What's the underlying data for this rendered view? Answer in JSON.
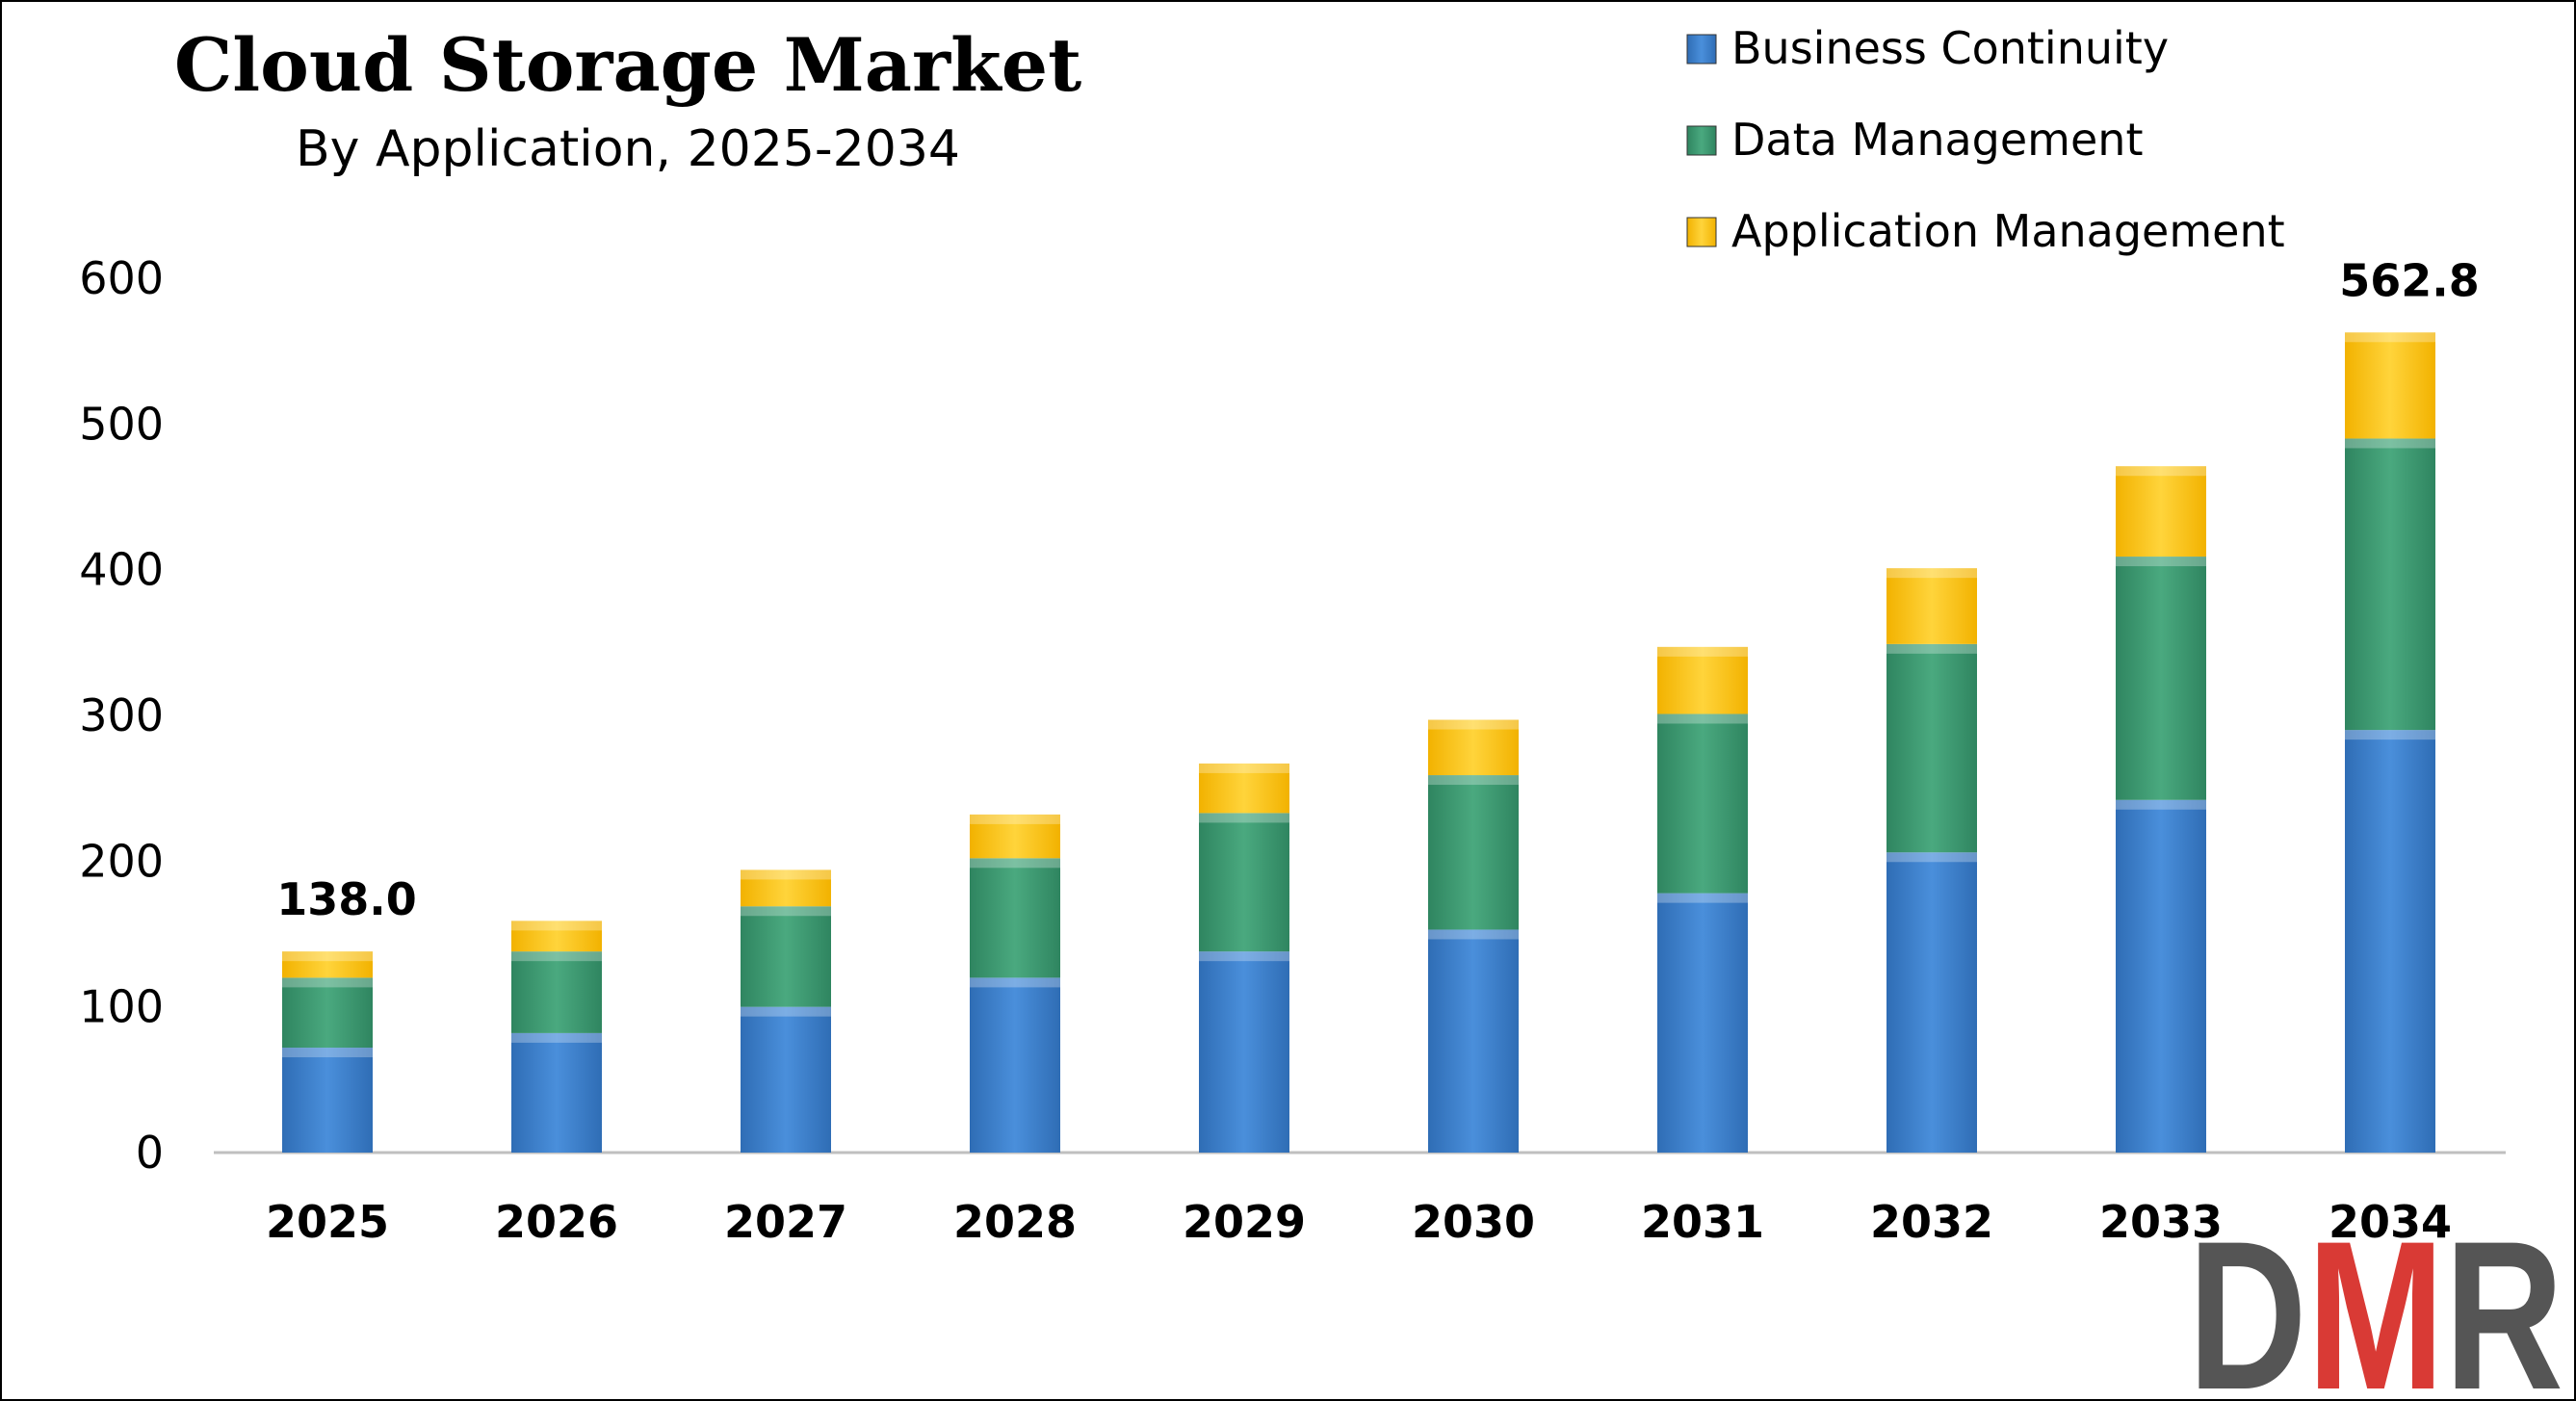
{
  "chart_data": {
    "type": "bar",
    "stacked": true,
    "title": "Cloud Storage Market",
    "subtitle": "By Application, 2025-2034",
    "categories": [
      "2025",
      "2026",
      "2027",
      "2028",
      "2029",
      "2030",
      "2031",
      "2032",
      "2033",
      "2034"
    ],
    "series": [
      {
        "name": "Business Continuity",
        "color": "#3a7dc9",
        "values": [
          72,
          82,
          100,
          120,
          138,
          153,
          178,
          206,
          242,
          290
        ]
      },
      {
        "name": "Data Management",
        "color": "#3d9970",
        "values": [
          48,
          56,
          69,
          82,
          95,
          106,
          123,
          143,
          167,
          200
        ]
      },
      {
        "name": "Application Management",
        "color": "#ffc107",
        "values": [
          18,
          21,
          25,
          30,
          34,
          38,
          46,
          52,
          62,
          72.8
        ]
      }
    ],
    "yticks": [
      "0",
      "100",
      "200",
      "300",
      "400",
      "500",
      "600"
    ],
    "ylim": [
      0,
      600
    ],
    "data_labels": [
      {
        "category": "2025",
        "text": "138.0"
      },
      {
        "category": "2034",
        "text": "562.8"
      }
    ],
    "legend_position": "top-right",
    "grid": false
  },
  "logo": {
    "text": "DMR",
    "colors": [
      "#555555",
      "#d93a35",
      "#555555"
    ]
  }
}
